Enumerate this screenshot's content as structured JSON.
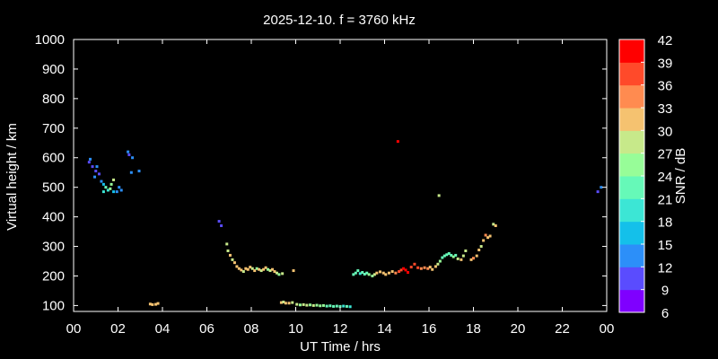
{
  "chart_data": {
    "type": "scatter",
    "title": "2025-12-10. f = 3760 kHz",
    "xlabel": "UT Time / hrs",
    "ylabel": "Virtual height / km",
    "xlim": [
      0,
      24
    ],
    "ylim": [
      80,
      1000
    ],
    "xticks": [
      "00",
      "02",
      "04",
      "06",
      "08",
      "10",
      "12",
      "14",
      "16",
      "18",
      "20",
      "22",
      "00"
    ],
    "yticks": [
      100,
      200,
      300,
      400,
      500,
      600,
      700,
      800,
      900,
      1000
    ],
    "grid": false,
    "colorbar": {
      "label": "SNR / dB",
      "range": [
        6,
        42
      ],
      "ticks": [
        6,
        9,
        12,
        15,
        18,
        21,
        24,
        27,
        30,
        33,
        36,
        39,
        42
      ],
      "colors": [
        "#7f00ff",
        "#5a4cfe",
        "#2c8ff9",
        "#14c0ea",
        "#3ce6d5",
        "#66f9b8",
        "#97fd98",
        "#c7e98a",
        "#f5c270",
        "#ff8b50",
        "#ff4a2a",
        "#ff0000"
      ]
    },
    "points": [
      [
        0.7,
        585,
        11
      ],
      [
        0.75,
        595,
        12
      ],
      [
        0.85,
        570,
        11
      ],
      [
        0.95,
        535,
        12
      ],
      [
        1.0,
        555,
        11
      ],
      [
        1.05,
        570,
        12
      ],
      [
        1.15,
        545,
        11
      ],
      [
        1.25,
        520,
        13
      ],
      [
        1.35,
        510,
        16
      ],
      [
        1.35,
        485,
        20
      ],
      [
        1.45,
        500,
        22
      ],
      [
        1.55,
        490,
        20
      ],
      [
        1.65,
        495,
        24
      ],
      [
        1.7,
        510,
        26
      ],
      [
        1.8,
        485,
        16
      ],
      [
        1.8,
        525,
        28
      ],
      [
        1.95,
        485,
        14
      ],
      [
        2.05,
        500,
        13
      ],
      [
        2.15,
        490,
        12
      ],
      [
        2.45,
        620,
        12
      ],
      [
        2.5,
        610,
        11
      ],
      [
        2.6,
        550,
        12
      ],
      [
        2.65,
        600,
        12
      ],
      [
        2.95,
        555,
        12
      ],
      [
        3.45,
        105,
        31
      ],
      [
        3.55,
        103,
        31
      ],
      [
        3.7,
        104,
        30
      ],
      [
        3.8,
        107,
        30
      ],
      [
        6.55,
        385,
        10
      ],
      [
        6.65,
        370,
        11
      ],
      [
        6.9,
        308,
        29
      ],
      [
        6.95,
        285,
        29
      ],
      [
        7.05,
        270,
        30
      ],
      [
        7.15,
        255,
        29
      ],
      [
        7.25,
        245,
        31
      ],
      [
        7.35,
        232,
        30
      ],
      [
        7.45,
        225,
        31
      ],
      [
        7.55,
        220,
        30
      ],
      [
        7.65,
        215,
        29
      ],
      [
        7.75,
        225,
        31
      ],
      [
        7.85,
        222,
        30
      ],
      [
        7.95,
        230,
        31
      ],
      [
        8.05,
        225,
        29
      ],
      [
        8.15,
        218,
        31
      ],
      [
        8.25,
        225,
        26
      ],
      [
        8.35,
        222,
        30
      ],
      [
        8.45,
        218,
        29
      ],
      [
        8.55,
        222,
        30
      ],
      [
        8.65,
        228,
        31
      ],
      [
        8.75,
        222,
        26
      ],
      [
        8.85,
        218,
        29
      ],
      [
        8.95,
        222,
        30
      ],
      [
        9.05,
        215,
        31
      ],
      [
        9.15,
        210,
        29
      ],
      [
        9.25,
        205,
        26
      ],
      [
        9.4,
        208,
        29
      ],
      [
        9.35,
        110,
        30
      ],
      [
        9.45,
        112,
        29
      ],
      [
        9.55,
        108,
        31
      ],
      [
        9.7,
        108,
        30
      ],
      [
        9.85,
        110,
        29
      ],
      [
        9.9,
        218,
        31
      ],
      [
        10.05,
        104,
        27
      ],
      [
        10.2,
        102,
        26
      ],
      [
        10.35,
        103,
        28
      ],
      [
        10.5,
        101,
        27
      ],
      [
        10.65,
        102,
        26
      ],
      [
        10.8,
        100,
        27
      ],
      [
        10.95,
        101,
        25
      ],
      [
        11.1,
        99,
        26
      ],
      [
        11.25,
        100,
        24
      ],
      [
        11.4,
        98,
        23
      ],
      [
        11.55,
        99,
        22
      ],
      [
        11.7,
        97,
        21
      ],
      [
        11.85,
        98,
        22
      ],
      [
        12.0,
        97,
        21
      ],
      [
        12.15,
        98,
        20
      ],
      [
        12.3,
        97,
        21
      ],
      [
        12.45,
        96,
        20
      ],
      [
        12.6,
        205,
        22
      ],
      [
        12.7,
        210,
        23
      ],
      [
        12.8,
        218,
        21
      ],
      [
        12.9,
        208,
        20
      ],
      [
        13.0,
        212,
        22
      ],
      [
        13.1,
        206,
        21
      ],
      [
        13.2,
        210,
        23
      ],
      [
        13.3,
        205,
        24
      ],
      [
        13.45,
        200,
        26
      ],
      [
        13.55,
        205,
        28
      ],
      [
        13.65,
        210,
        30
      ],
      [
        13.8,
        214,
        31
      ],
      [
        13.95,
        210,
        30
      ],
      [
        14.05,
        205,
        32
      ],
      [
        14.2,
        210,
        31
      ],
      [
        14.35,
        215,
        30
      ],
      [
        14.5,
        210,
        33
      ],
      [
        14.65,
        215,
        36
      ],
      [
        14.75,
        220,
        38
      ],
      [
        14.85,
        225,
        40
      ],
      [
        14.95,
        220,
        42
      ],
      [
        15.05,
        212,
        41
      ],
      [
        15.2,
        230,
        38
      ],
      [
        15.35,
        240,
        37
      ],
      [
        15.5,
        228,
        36
      ],
      [
        15.65,
        225,
        35
      ],
      [
        15.8,
        228,
        34
      ],
      [
        15.95,
        225,
        33
      ],
      [
        16.05,
        230,
        32
      ],
      [
        16.15,
        222,
        31
      ],
      [
        16.3,
        232,
        30
      ],
      [
        16.4,
        240,
        27
      ],
      [
        16.5,
        250,
        25
      ],
      [
        16.6,
        262,
        23
      ],
      [
        16.7,
        268,
        22
      ],
      [
        16.8,
        272,
        21
      ],
      [
        16.9,
        276,
        22
      ],
      [
        17.0,
        270,
        23
      ],
      [
        17.1,
        265,
        24
      ],
      [
        17.2,
        270,
        22
      ],
      [
        17.3,
        258,
        29
      ],
      [
        17.45,
        255,
        30
      ],
      [
        17.55,
        268,
        28
      ],
      [
        17.65,
        285,
        27
      ],
      [
        17.9,
        255,
        32
      ],
      [
        18.0,
        260,
        33
      ],
      [
        18.15,
        268,
        31
      ],
      [
        18.25,
        288,
        30
      ],
      [
        18.35,
        300,
        29
      ],
      [
        18.45,
        320,
        31
      ],
      [
        18.55,
        338,
        33
      ],
      [
        18.65,
        330,
        32
      ],
      [
        18.75,
        335,
        31
      ],
      [
        18.9,
        375,
        29
      ],
      [
        19.0,
        370,
        30
      ],
      [
        14.6,
        655,
        42
      ],
      [
        16.45,
        472,
        27
      ],
      [
        23.6,
        485,
        11
      ],
      [
        23.75,
        500,
        12
      ]
    ]
  }
}
